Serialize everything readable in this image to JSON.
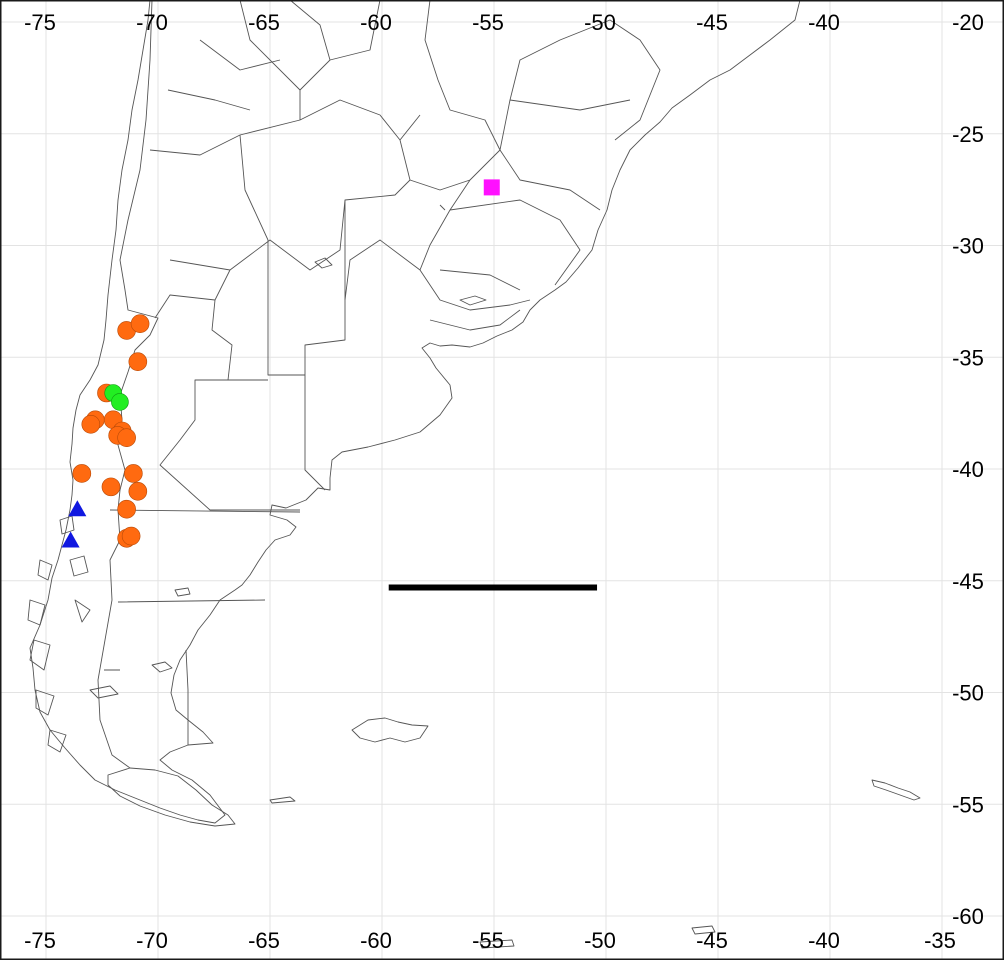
{
  "map": {
    "x_tick_labels": [
      "-75",
      "-70",
      "-65",
      "-60",
      "-55",
      "-50",
      "-45",
      "-40",
      "-35"
    ],
    "x_ticks": [
      -75,
      -70,
      -65,
      -60,
      -55,
      -50,
      -45,
      -40,
      -35
    ],
    "y_tick_labels": [
      "-20",
      "-25",
      "-30",
      "-35",
      "-40",
      "-45",
      "-50",
      "-55",
      "-60"
    ],
    "y_ticks": [
      -20,
      -25,
      -30,
      -35,
      -40,
      -45,
      -50,
      -55,
      -60
    ],
    "lon_range": [
      -76.5,
      -35
    ],
    "lat_range": [
      -60,
      -19
    ],
    "grid": true,
    "colors": {
      "orange_points": "#ff6a10",
      "green_points": "#22ee22",
      "blue_triangles": "#1018e0",
      "magenta_square": "#ff10ff",
      "scale_bar": "#000000",
      "boundaries": "#555555",
      "grid": "#e3e3e3"
    },
    "orange_points": [
      [
        -71.4,
        -33.8
      ],
      [
        -70.8,
        -33.5
      ],
      [
        -70.9,
        -35.2
      ],
      [
        -72.3,
        -36.6
      ],
      [
        -72.8,
        -37.8
      ],
      [
        -72.0,
        -37.8
      ],
      [
        -73.0,
        -38.0
      ],
      [
        -71.6,
        -38.3
      ],
      [
        -71.8,
        -38.5
      ],
      [
        -71.4,
        -38.6
      ],
      [
        -73.4,
        -40.2
      ],
      [
        -71.1,
        -40.2
      ],
      [
        -72.1,
        -40.8
      ],
      [
        -70.9,
        -41.0
      ],
      [
        -71.4,
        -41.8
      ],
      [
        -71.4,
        -43.1
      ],
      [
        -71.2,
        -43.0
      ]
    ],
    "green_points": [
      [
        -72.0,
        -36.6
      ],
      [
        -71.7,
        -37.0
      ]
    ],
    "blue_triangles": [
      [
        -73.6,
        -41.8
      ],
      [
        -73.9,
        -43.2
      ]
    ],
    "magenta_square": [
      -55.1,
      -27.4
    ],
    "scale_bar": {
      "from": [
        -59.7,
        -45.3
      ],
      "to": [
        -50.4,
        -45.3
      ]
    }
  }
}
